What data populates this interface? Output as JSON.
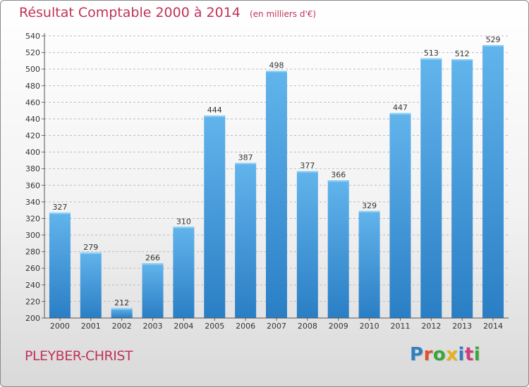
{
  "header": {
    "title": "Résultat Comptable 2000 à 2014",
    "subtitle": "(en milliers d'€)"
  },
  "footer": {
    "place": "PLEYBER-CHRIST",
    "logo_letters": [
      "P",
      "r",
      "o",
      "x",
      "i",
      "t",
      "i"
    ],
    "logo_colors": [
      "#2f7fc1",
      "#e0502a",
      "#3aa635",
      "#e6b21c",
      "#2f7fc1",
      "#d23c7c",
      "#3aa635"
    ]
  },
  "colors": {
    "bar_top": "#62b4ec",
    "bar_bottom": "#2a7ec4",
    "accent": "#c0335a",
    "grid": "#bbbbbb"
  },
  "chart_data": {
    "type": "bar",
    "title": "Résultat Comptable 2000 à 2014",
    "subtitle": "(en milliers d'€)",
    "categories": [
      "2000",
      "2001",
      "2002",
      "2003",
      "2004",
      "2005",
      "2006",
      "2007",
      "2008",
      "2009",
      "2010",
      "2011",
      "2012",
      "2013",
      "2014"
    ],
    "values": [
      327,
      279,
      212,
      266,
      310,
      444,
      387,
      498,
      377,
      366,
      329,
      447,
      513,
      512,
      529
    ],
    "ylim": [
      200,
      540
    ],
    "yticks": [
      200,
      220,
      240,
      260,
      280,
      300,
      320,
      340,
      360,
      380,
      400,
      420,
      440,
      460,
      480,
      500,
      520,
      540
    ],
    "grid": true,
    "data_labels": true
  }
}
